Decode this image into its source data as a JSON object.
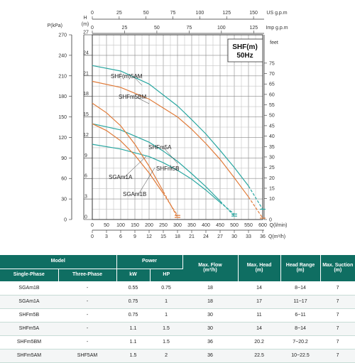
{
  "chart_data": {
    "type": "line",
    "title": "SHF(m)\n50Hz",
    "title_lines": [
      "SHF(m)",
      "50Hz"
    ],
    "axes": {
      "left_p": {
        "label": "P(kPa)",
        "ticks": [
          "0",
          "30",
          "60",
          "90",
          "120",
          "150",
          "180",
          "210",
          "240",
          "270"
        ]
      },
      "left_h": {
        "label_lines": [
          "H",
          "(m)"
        ],
        "ticks": [
          "0",
          "3",
          "6",
          "9",
          "12",
          "15",
          "18",
          "21",
          "24",
          "27"
        ],
        "range": [
          0,
          27
        ]
      },
      "right_feet": {
        "label": "feet",
        "ticks": [
          "0",
          "10",
          "15",
          "20",
          "25",
          "30",
          "35",
          "40",
          "45",
          "50",
          "55",
          "60",
          "65",
          "70",
          "75"
        ]
      },
      "top_us": {
        "label": "US g.p.m",
        "ticks": [
          "0",
          "25",
          "50",
          "75",
          "100",
          "125",
          "150"
        ]
      },
      "top_imp": {
        "label": "Imp g.p.m",
        "ticks": [
          "0",
          "25",
          "50",
          "75",
          "100",
          "125"
        ]
      },
      "bottom_q": {
        "label": "Q(l/min)",
        "ticks": [
          "0",
          "50",
          "100",
          "150",
          "200",
          "250",
          "300",
          "350",
          "400",
          "450",
          "500",
          "550",
          "600"
        ],
        "range": [
          0,
          600
        ]
      },
      "bottom_m3": {
        "label": "Q(m³/h)",
        "ticks": [
          "0",
          "3",
          "6",
          "9",
          "12",
          "15",
          "18",
          "21",
          "24",
          "27",
          "30",
          "33",
          "36"
        ]
      }
    },
    "grid": true,
    "series": [
      {
        "name": "SHF(m)5AM",
        "color": "#2aa7a1",
        "x": [
          0,
          100,
          200,
          300,
          350,
          400,
          450,
          500,
          550,
          600
        ],
        "y": [
          22.5,
          21.7,
          19.8,
          16.6,
          14.6,
          12.5,
          10.1,
          7.6,
          4.9,
          1.5
        ]
      },
      {
        "name": "SHFm5BM",
        "color": "#e07b39",
        "x": [
          0,
          100,
          200,
          300,
          350,
          400,
          450,
          500,
          550,
          600
        ],
        "y": [
          20.2,
          19.3,
          17.6,
          15.0,
          13.2,
          11.1,
          8.8,
          6.1,
          3.3,
          0.2
        ]
      },
      {
        "name": "SHFm5A",
        "color": "#2aa7a1",
        "x": [
          0,
          100,
          200,
          250,
          300,
          350,
          400,
          450,
          500
        ],
        "y": [
          14,
          13.1,
          11.3,
          10.0,
          8.5,
          6.7,
          4.8,
          2.7,
          0.5
        ]
      },
      {
        "name": "SHFm5B",
        "color": "#2aa7a1",
        "x": [
          0,
          100,
          200,
          250,
          300,
          350,
          400,
          450,
          500
        ],
        "y": [
          11,
          10.3,
          9.2,
          8.3,
          7.2,
          5.9,
          4.3,
          2.5,
          0.8
        ]
      },
      {
        "name": "SGAm1A",
        "color": "#e07b39",
        "x": [
          0,
          50,
          100,
          150,
          200,
          250,
          300
        ],
        "y": [
          17,
          15.6,
          13.7,
          11.0,
          7.8,
          4.1,
          0.3
        ]
      },
      {
        "name": "SGAm1B",
        "color": "#e07b39",
        "x": [
          0,
          50,
          100,
          150,
          200,
          250,
          300
        ],
        "y": [
          14,
          13.0,
          11.5,
          9.4,
          6.8,
          3.8,
          0.6
        ]
      }
    ]
  },
  "table": {
    "headers": {
      "model": "Model",
      "power": "Power",
      "max_flow_line1": "Max. Flow",
      "max_flow_line2": "(m³/h)",
      "max_head": "Max. Head",
      "max_head_unit": "(m)",
      "head_range_line1": "Head Range",
      "head_range_line2": "(m)",
      "max_suction_line1": "Max. Suction",
      "max_suction_line2": "(m)",
      "single_phase": "Single-Phase",
      "three_phase": "Three-Phase",
      "kw": "kW",
      "hp": "HP"
    },
    "rows": [
      {
        "single": "SGAm1B",
        "three": "-",
        "kw": "0.55",
        "hp": "0.75",
        "flow": "18",
        "head": "14",
        "range": "8~14",
        "suction": "7"
      },
      {
        "single": "SGAm1A",
        "three": "-",
        "kw": "0.75",
        "hp": "1",
        "flow": "18",
        "head": "17",
        "range": "11~17",
        "suction": "7"
      },
      {
        "single": "SHFm5B",
        "three": "-",
        "kw": "0.75",
        "hp": "1",
        "flow": "30",
        "head": "11",
        "range": "6~11",
        "suction": "7"
      },
      {
        "single": "SHFm5A",
        "three": "-",
        "kw": "1.1",
        "hp": "1.5",
        "flow": "30",
        "head": "14",
        "range": "8~14",
        "suction": "7"
      },
      {
        "single": "SHFm5BM",
        "three": "-",
        "kw": "1.1",
        "hp": "1.5",
        "flow": "36",
        "head": "20.2",
        "range": "7~20.2",
        "suction": "7"
      },
      {
        "single": "SHFm5AM",
        "three": "SHF5AM",
        "kw": "1.5",
        "hp": "2",
        "flow": "36",
        "head": "22.5",
        "range": "10~22.5",
        "suction": "7"
      }
    ]
  }
}
